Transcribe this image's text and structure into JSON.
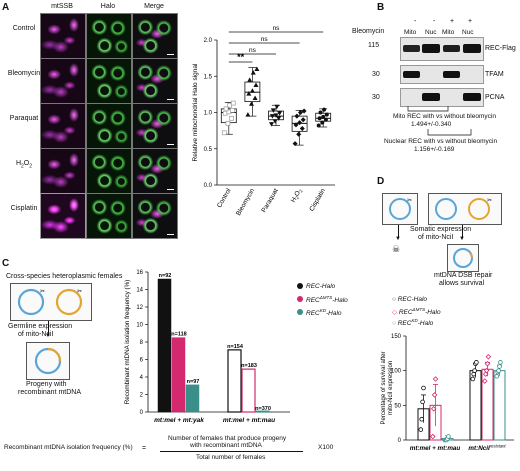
{
  "panels": {
    "a": "A",
    "b": "B",
    "c": "C",
    "d": "D"
  },
  "panel_a": {
    "columns": [
      "mtSSB",
      "Halo",
      "Merge"
    ],
    "rows": [
      "Control",
      "Bleomycin",
      "Paraquat",
      "H2O2",
      "Cisplatin"
    ],
    "colors": {
      "mtssb": "#e040e0",
      "halo": "#4cc84c"
    }
  },
  "panel_b": {
    "treatment_label": "Bleomycin",
    "treatment_signs": [
      "-",
      "-",
      "+",
      "+"
    ],
    "fractions": [
      "Mito",
      "Nuc",
      "Mito",
      "Nuc"
    ],
    "markers": [
      "115",
      "30",
      "30"
    ],
    "bands": [
      "REC-Flag",
      "TFAM",
      "PCNA"
    ],
    "mito_note_1": "Mito REC with vs without bleomycin",
    "mito_note_2": "1.494+/-0.340",
    "nuc_note_1": "Nuclear REC with vs without bleomycin",
    "nuc_note_2": "1.156+/-0.169"
  },
  "panel_c": {
    "heading": "Cross-species heteroplasmic females",
    "germline_1": "Germline expression",
    "germline_2": "of mito-NciI",
    "progeny_1": "Progeny with",
    "progeny_2": "recombinant mtDNA",
    "formula_left": "Recombinant mtDNA isolation frequency (%)",
    "formula_eq": "=",
    "formula_num_1": "Number of females that produce progeny",
    "formula_num_2": "with recombinant mtDNA",
    "formula_den": "Total number of females",
    "formula_x": "X100",
    "legend": [
      {
        "base": "REC",
        "sup": "",
        "suffix": "-Halo",
        "color": "#111111"
      },
      {
        "base": "REC",
        "sup": "ΔMTS",
        "suffix": "-Halo",
        "color": "#d4296e"
      },
      {
        "base": "REC",
        "sup": "KD",
        "suffix": "-Halo",
        "color": "#3a8f8a"
      }
    ],
    "colors": {
      "rec": "#111111",
      "dmts": "#d4296e",
      "kd": "#3a8f8a"
    }
  },
  "panel_d": {
    "somatic_1": "Somatic expression",
    "somatic_2": "of mito-NciI",
    "repair_1": "mtDNA DSB repair",
    "repair_2": "allows survival",
    "legend": [
      {
        "base": "REC",
        "sup": "",
        "suffix": "-Halo"
      },
      {
        "base": "REC",
        "sup": "ΔMTS",
        "suffix": "-Halo"
      },
      {
        "base": "REC",
        "sup": "KD",
        "suffix": "-Halo"
      }
    ]
  },
  "chart_data": [
    {
      "type": "box",
      "panel": "A",
      "ylabel": "Relative mitochondrial Halo signal",
      "categories": [
        "Control",
        "Bleomycin",
        "Paraquat",
        "H2O2",
        "Cisplatin"
      ],
      "yticks": [
        "0.0",
        "0.5",
        "1.0",
        "1.5",
        "2.0"
      ],
      "ylim": [
        0,
        2.0
      ],
      "boxes": [
        {
          "min": 0.7,
          "q1": 0.86,
          "median": 1.0,
          "q3": 1.05,
          "max": 1.14
        },
        {
          "min": 0.95,
          "q1": 1.15,
          "median": 1.28,
          "q3": 1.42,
          "max": 1.62
        },
        {
          "min": 0.82,
          "q1": 0.9,
          "median": 0.95,
          "q3": 1.02,
          "max": 1.1
        },
        {
          "min": 0.55,
          "q1": 0.74,
          "median": 0.85,
          "q3": 0.95,
          "max": 1.03
        },
        {
          "min": 0.8,
          "q1": 0.88,
          "median": 0.92,
          "q3": 0.99,
          "max": 1.05
        }
      ],
      "points": [
        [
          0.72,
          0.85,
          0.92,
          0.99,
          1.01,
          1.03,
          1.05,
          1.1,
          1.13
        ],
        [
          0.97,
          1.12,
          1.2,
          1.26,
          1.3,
          1.38,
          1.45,
          1.55,
          1.6
        ],
        [
          0.84,
          0.88,
          0.92,
          0.95,
          0.96,
          0.99,
          1.03,
          1.08
        ],
        [
          0.57,
          0.7,
          0.78,
          0.83,
          0.86,
          0.9,
          0.95,
          1.0,
          1.02
        ],
        [
          0.82,
          0.86,
          0.9,
          0.92,
          0.94,
          0.97,
          1.0,
          1.04
        ]
      ],
      "significance": [
        {
          "from": 0,
          "to": 1,
          "label": "**"
        },
        {
          "from": 0,
          "to": 2,
          "label": "ns"
        },
        {
          "from": 0,
          "to": 3,
          "label": "ns"
        },
        {
          "from": 0,
          "to": 4,
          "label": "ns"
        }
      ]
    },
    {
      "type": "bar",
      "panel": "C",
      "ylabel": "Recombinant mtDNA isolation frequency (%)",
      "categories": [
        "mt:mel + mt:yak",
        "mt:mel + mt:mau"
      ],
      "yticks": [
        "0",
        "2",
        "4",
        "6",
        "8",
        "10",
        "12",
        "14",
        "16"
      ],
      "ylim": [
        0,
        16
      ],
      "series": [
        {
          "values": [
            15.2,
            7.1
          ],
          "n": [
            "n=92",
            "n=154"
          ]
        },
        {
          "values": [
            8.5,
            4.9
          ],
          "n": [
            "n=118",
            "n=183"
          ]
        },
        {
          "values": [
            3.1,
            0.0
          ],
          "n": [
            "n=97",
            "n=370"
          ]
        }
      ]
    },
    {
      "type": "bar",
      "panel": "D",
      "ylabel": "Percentage of survival after mito-NciI expression",
      "categories": [
        "mt:mel + mt:mau",
        "mt:NciI"
      ],
      "category_sup": [
        "",
        "resistant"
      ],
      "yticks": [
        "0",
        "50",
        "100",
        "150"
      ],
      "ylim": [
        0,
        150
      ],
      "series": [
        {
          "values": [
            45,
            100
          ],
          "errors": [
            20,
            10
          ],
          "points": [
            [
              15,
              30,
              55,
              75
            ],
            [
              88,
              95,
              100,
              110,
              112
            ]
          ]
        },
        {
          "values": [
            50,
            102
          ],
          "errors": [
            30,
            10
          ],
          "points": [
            [
              5,
              45,
              65,
              88
            ],
            [
              85,
              95,
              100,
              110,
              120
            ]
          ]
        },
        {
          "values": [
            2,
            100
          ],
          "errors": [
            4,
            8
          ],
          "points": [
            [
              0,
              0,
              0,
              2,
              5
            ],
            [
              92,
              98,
              100,
              106,
              112
            ]
          ]
        }
      ]
    }
  ]
}
